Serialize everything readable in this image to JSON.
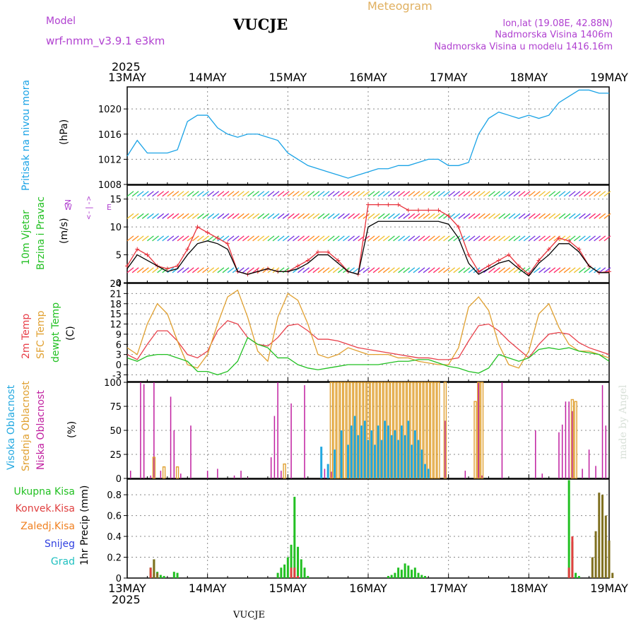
{
  "header": {
    "model_label": "Model",
    "model_name": "wrf-nmm_v3.9.1  e3km",
    "station_title": "VUCJE",
    "meteogram_label": "Meteogram",
    "lonlat": "lon,lat (19.08E, 42.88N)",
    "elevation": "Nadmorska Visina 1406m",
    "model_elevation": "Nadmorska Visina u modelu 1416.16m"
  },
  "footer": {
    "station": "VUCJE",
    "credit": "made by Angel"
  },
  "colors": {
    "pressure": "#1aa3e6",
    "wind_red": "#e8303a",
    "wind_black": "#000000",
    "temp2m": "#e8404a",
    "sfc": "#e0a030",
    "dew": "#22c022",
    "cloud_high": "#22a8e0",
    "cloud_mid": "#e0a030",
    "cloud_low": "#c020a0",
    "precip_total": "#22c022",
    "precip_conv": "#e04040",
    "precip_frozen": "#f08020",
    "snow": "#3040e0",
    "hail": "#20c0c0",
    "purple_text": "#b040d0",
    "meteogram_text": "#e0b060"
  },
  "time_axis": {
    "year": "2025",
    "days": [
      "13MAY",
      "14MAY",
      "15MAY",
      "16MAY",
      "17MAY",
      "18MAY",
      "19MAY"
    ]
  },
  "chart_data": [
    {
      "type": "line",
      "title": "Pritisak na nivou mora",
      "ylabel": "(hPa)",
      "ylim": [
        1008,
        1023.5
      ],
      "yticks": [
        1008,
        1012,
        1016,
        1020
      ],
      "x_hours": [
        0,
        3,
        6,
        9,
        12,
        15,
        18,
        21,
        24,
        27,
        30,
        33,
        36,
        39,
        42,
        45,
        48,
        51,
        54,
        57,
        60,
        63,
        66,
        69,
        72,
        75,
        78,
        81,
        84,
        87,
        90,
        93,
        96,
        99,
        102,
        105,
        108,
        111,
        114,
        117,
        120,
        123,
        126,
        129,
        132,
        135,
        138,
        141,
        144
      ],
      "series": [
        {
          "name": "MSLP",
          "values": [
            1012.5,
            1015,
            1013,
            1013,
            1013,
            1013.5,
            1018,
            1019,
            1019,
            1017,
            1016,
            1015.5,
            1016,
            1016,
            1015.5,
            1015,
            1013,
            1012,
            1011,
            1010.5,
            1010,
            1009.5,
            1009,
            1009.5,
            1010,
            1010.5,
            1010.5,
            1011,
            1011,
            1011.5,
            1012,
            1012,
            1011,
            1011,
            1011.5,
            1016,
            1018.5,
            1019.5,
            1019,
            1018.5,
            1019,
            1018.5,
            1019,
            1021,
            1022,
            1023,
            1023,
            1022.5,
            1022.5
          ]
        }
      ]
    },
    {
      "type": "line",
      "title": "10m Vjetar Brzina i Pravac",
      "ylabel": "(m/s)",
      "ylim": [
        0,
        17.5
      ],
      "yticks": [
        0,
        5,
        10,
        15
      ],
      "direction_legend": {
        "n": "N",
        "s": "S",
        "e": "E",
        "w": "W",
        "arrows": "<-|->"
      },
      "x_hours": [
        0,
        3,
        6,
        9,
        12,
        15,
        18,
        21,
        24,
        27,
        30,
        33,
        36,
        39,
        42,
        45,
        48,
        51,
        54,
        57,
        60,
        63,
        66,
        69,
        72,
        75,
        78,
        81,
        84,
        87,
        90,
        93,
        96,
        99,
        102,
        105,
        108,
        111,
        114,
        117,
        120,
        123,
        126,
        129,
        132,
        135,
        138,
        141,
        144
      ],
      "series": [
        {
          "name": "gust",
          "values": [
            3,
            6,
            5,
            3,
            2.5,
            3,
            6,
            10,
            9,
            8,
            7,
            2,
            1.5,
            2,
            2.5,
            2,
            2,
            3,
            4,
            5.5,
            5.5,
            4,
            2,
            1.5,
            14,
            14,
            14,
            14,
            13,
            13,
            13,
            13,
            12,
            10,
            5,
            2,
            3,
            4,
            5,
            3,
            1.5,
            4,
            6,
            8,
            7.5,
            6,
            3,
            1.8,
            2
          ]
        },
        {
          "name": "wind",
          "values": [
            2.5,
            5,
            4,
            3,
            2,
            2.5,
            5,
            7,
            7.5,
            7,
            6,
            2,
            1.5,
            2,
            2.5,
            2,
            2,
            2.5,
            3.5,
            5,
            5,
            3.5,
            2,
            1.5,
            10,
            11,
            11,
            11,
            11,
            11,
            11,
            11,
            10.5,
            8,
            3.5,
            1.5,
            2.5,
            3.5,
            4,
            2.5,
            1.2,
            3.5,
            5,
            7,
            7,
            5.5,
            3,
            1.8,
            1.8
          ]
        }
      ]
    },
    {
      "type": "line",
      "title": "2m Temp / SFC Temp / dewpt Temp",
      "ylabel": "(C)",
      "ylim": [
        -5,
        24
      ],
      "yticks": [
        -3,
        0,
        3,
        6,
        9,
        12,
        15,
        18,
        21,
        24
      ],
      "x_hours": [
        0,
        3,
        6,
        9,
        12,
        15,
        18,
        21,
        24,
        27,
        30,
        33,
        36,
        39,
        42,
        45,
        48,
        51,
        54,
        57,
        60,
        63,
        66,
        69,
        72,
        75,
        78,
        81,
        84,
        87,
        90,
        93,
        96,
        99,
        102,
        105,
        108,
        111,
        114,
        117,
        120,
        123,
        126,
        129,
        132,
        135,
        138,
        141,
        144
      ],
      "series": [
        {
          "name": "2m Temp",
          "values": [
            3,
            1.5,
            6,
            10,
            10,
            7,
            3,
            2,
            4,
            10,
            13,
            12,
            8,
            6,
            5.5,
            8,
            11.5,
            12,
            10,
            7.5,
            7.5,
            7,
            6,
            5,
            4.5,
            4,
            3.5,
            3,
            2.5,
            2,
            2,
            1.5,
            1.5,
            2,
            7,
            11.5,
            12,
            10,
            7,
            4.5,
            2,
            6,
            9,
            9.5,
            9,
            6.5,
            5,
            4,
            3
          ]
        },
        {
          "name": "SFC Temp",
          "values": [
            5,
            3,
            12,
            18,
            15,
            7,
            0,
            -1,
            3,
            12,
            20,
            22,
            14,
            4,
            1,
            14,
            21,
            19,
            12,
            3,
            2,
            3,
            5,
            4,
            3,
            3,
            3,
            2,
            2,
            1,
            0.5,
            0,
            0,
            5,
            17,
            20,
            16,
            6,
            0,
            -1,
            4,
            15,
            18,
            11,
            6,
            4,
            4,
            3,
            2
          ]
        },
        {
          "name": "dewpt Temp",
          "values": [
            2,
            1,
            2.5,
            3,
            3,
            2,
            1,
            -2,
            -2,
            -3,
            -2,
            1,
            8,
            6,
            5,
            2,
            2,
            0,
            -1,
            -1.5,
            -1,
            -0.5,
            0,
            0,
            0,
            0,
            0.5,
            1,
            1,
            1.5,
            1.5,
            0.5,
            -0.5,
            -1,
            -2,
            -2.5,
            -1,
            3,
            2,
            1,
            2,
            4.5,
            5,
            4.5,
            5,
            4,
            3.5,
            3,
            1
          ]
        }
      ]
    },
    {
      "type": "bar",
      "title": "Visoka / Srednja / Niska Oblacnost",
      "ylabel": "(%)",
      "ylim": [
        0,
        100
      ],
      "yticks": [
        0,
        25,
        50,
        75,
        100
      ],
      "series": [
        {
          "name": "Niska Oblacnost",
          "hours": [
            1,
            4,
            5,
            7,
            8,
            10,
            13,
            14,
            16,
            19,
            24,
            27,
            32,
            34,
            36,
            43,
            44,
            45,
            46,
            49,
            53,
            59,
            61,
            64,
            67,
            72,
            87,
            95,
            101,
            105,
            106,
            112,
            122,
            124,
            129,
            130,
            131,
            132,
            133,
            136,
            138,
            140,
            142,
            143
          ],
          "values": [
            8,
            100,
            98,
            3,
            100,
            8,
            85,
            50,
            5,
            55,
            8,
            10,
            3,
            8,
            1,
            22,
            65,
            100,
            8,
            78,
            97,
            10,
            7,
            5,
            10,
            3,
            5,
            60,
            8,
            100,
            3,
            100,
            50,
            5,
            48,
            56,
            80,
            80,
            70,
            10,
            30,
            13,
            97,
            55
          ]
        },
        {
          "name": "Srednja Oblacnost",
          "hours": [
            8,
            11,
            15,
            47,
            61,
            62,
            63,
            64,
            65,
            66,
            67,
            68,
            69,
            70,
            71,
            72,
            73,
            74,
            75,
            76,
            77,
            78,
            79,
            80,
            81,
            82,
            83,
            84,
            85,
            86,
            87,
            88,
            89,
            90,
            91,
            92,
            93,
            95,
            104,
            105,
            106,
            133,
            134
          ],
          "values": [
            22,
            12,
            12,
            15,
            100,
            100,
            100,
            100,
            100,
            100,
            100,
            100,
            100,
            100,
            100,
            100,
            100,
            100,
            100,
            100,
            100,
            100,
            100,
            100,
            100,
            100,
            100,
            100,
            100,
            100,
            100,
            100,
            100,
            100,
            100,
            100,
            100,
            100,
            80,
            100,
            100,
            82,
            80
          ]
        },
        {
          "name": "Visoka Oblacnost",
          "hours": [
            58,
            60,
            62,
            64,
            66,
            67,
            68,
            69,
            70,
            71,
            72,
            73,
            74,
            75,
            76,
            77,
            78,
            79,
            80,
            81,
            82,
            83,
            84,
            85,
            86,
            87,
            88,
            89,
            90
          ],
          "values": [
            33,
            15,
            30,
            50,
            35,
            55,
            65,
            45,
            55,
            60,
            40,
            50,
            35,
            55,
            40,
            60,
            55,
            45,
            50,
            40,
            55,
            45,
            60,
            35,
            50,
            40,
            30,
            15,
            10
          ]
        }
      ]
    },
    {
      "type": "bar",
      "title": "1hr Precip",
      "ylabel": "1hr Precip (mm)",
      "ylim": [
        0,
        0.95
      ],
      "yticks": [
        0,
        0.2,
        0.4,
        0.6,
        0.8
      ],
      "legend": [
        "Ukupna Kisa",
        "Konvek.Kisa",
        "Zaledj.Kisa",
        "Snijeg",
        "Grad"
      ],
      "series": [
        {
          "name": "Ukupna Kisa",
          "hours": [
            7,
            8,
            9,
            10,
            11,
            14,
            15,
            45,
            46,
            47,
            48,
            49,
            50,
            51,
            52,
            53,
            54,
            78,
            79,
            80,
            81,
            82,
            83,
            84,
            85,
            86,
            87,
            88,
            89,
            132,
            133,
            134,
            135
          ],
          "values": [
            0.1,
            0.18,
            0.06,
            0.03,
            0.02,
            0.06,
            0.05,
            0.05,
            0.1,
            0.13,
            0.2,
            0.32,
            0.78,
            0.3,
            0.18,
            0.1,
            0.02,
            0.02,
            0.03,
            0.05,
            0.1,
            0.08,
            0.14,
            0.12,
            0.08,
            0.1,
            0.05,
            0.03,
            0.02,
            0.94,
            0.35,
            0.05,
            0.02
          ]
        },
        {
          "name": "Konvek.Kisa",
          "hours": [
            7,
            8,
            49,
            50,
            51,
            132,
            133
          ],
          "values": [
            0.1,
            0.04,
            0.1,
            0.1,
            0.02,
            0.1,
            0.4
          ]
        },
        {
          "name": "Zaledj.Kisa",
          "hours": [
            8,
            9,
            139,
            140,
            141,
            142,
            143,
            144,
            145
          ],
          "values": [
            0.18,
            0.05,
            0.2,
            0.45,
            0.82,
            0.8,
            0.6,
            0.36,
            0.05
          ]
        }
      ]
    }
  ],
  "panel_labels": {
    "pressure": [
      "Pritisak na nivou mora"
    ],
    "wind_line1": "10m Vjetar",
    "wind_line2": "Brzina i Pravac",
    "temp2m": "2m Temp",
    "sfc": "SFC Temp",
    "dew": "dewpt Temp",
    "cloud_high": "Visoka Oblacnost",
    "cloud_mid": "Srednja Oblacnost",
    "cloud_low": "Niska Oblacnost",
    "precip_legend": [
      "Ukupna Kisa",
      "Konvek.Kisa",
      "Zaledj.Kisa",
      "Snijeg",
      "Grad"
    ],
    "precip_ylabel": "1hr Precip (mm)",
    "units_pressure": "(hPa)",
    "units_wind": "(m/s)",
    "units_temp": "(C)",
    "units_cloud": "(%)"
  }
}
